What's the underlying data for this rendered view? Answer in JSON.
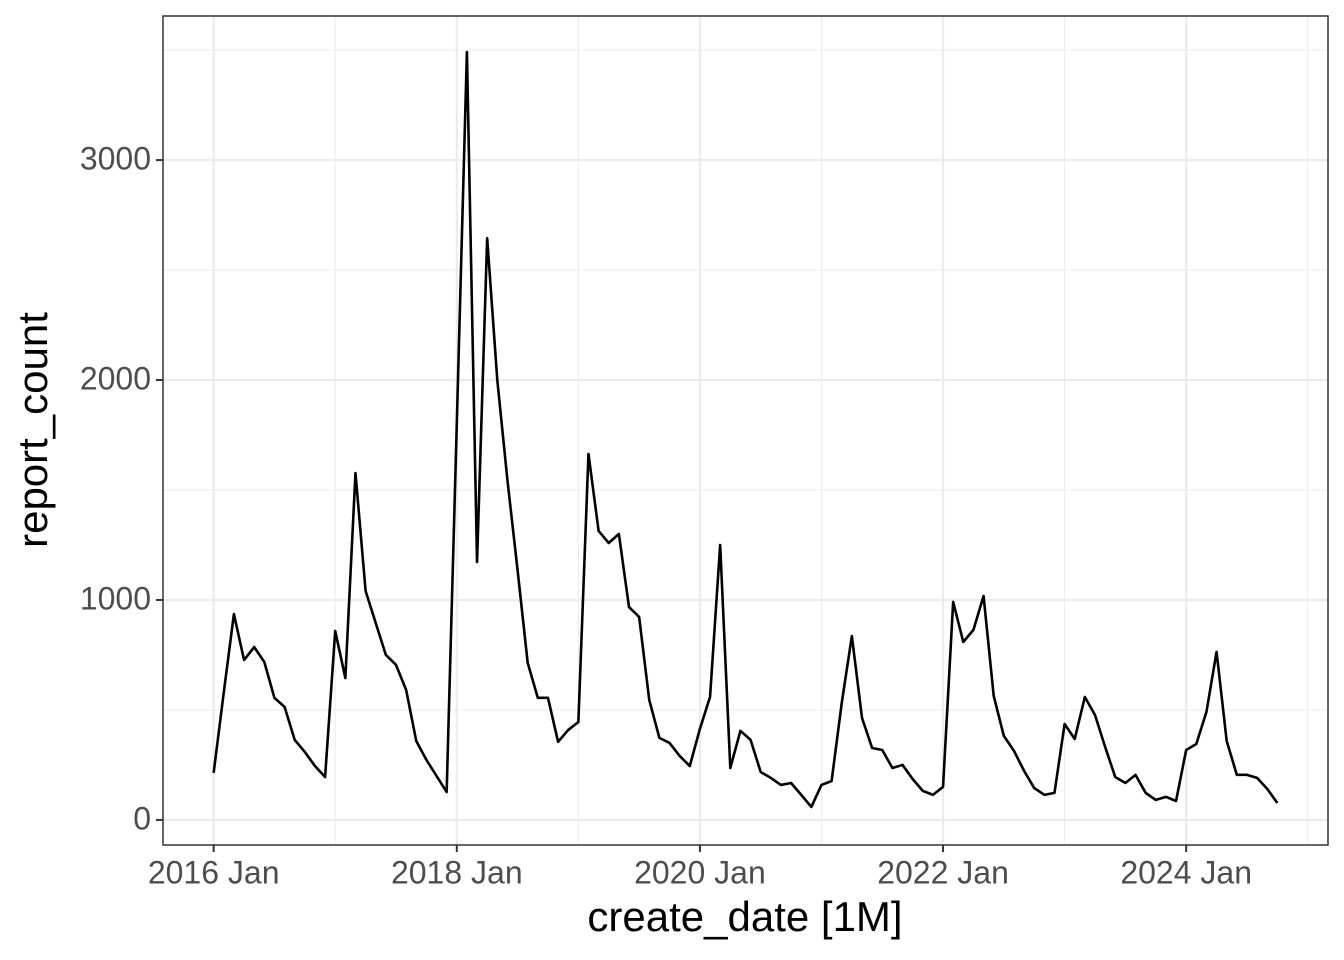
{
  "chart_data": {
    "type": "line",
    "x_label": "create_date [1M]",
    "y_label": "report_count",
    "x": [
      "2016-01",
      "2016-02",
      "2016-03",
      "2016-04",
      "2016-05",
      "2016-06",
      "2016-07",
      "2016-08",
      "2016-09",
      "2016-10",
      "2016-11",
      "2016-12",
      "2017-01",
      "2017-02",
      "2017-03",
      "2017-04",
      "2017-05",
      "2017-06",
      "2017-07",
      "2017-08",
      "2017-09",
      "2017-10",
      "2017-11",
      "2017-12",
      "2018-01",
      "2018-02",
      "2018-03",
      "2018-04",
      "2018-05",
      "2018-06",
      "2018-07",
      "2018-08",
      "2018-09",
      "2018-10",
      "2018-11",
      "2018-12",
      "2019-01",
      "2019-02",
      "2019-03",
      "2019-04",
      "2019-05",
      "2019-06",
      "2019-07",
      "2019-08",
      "2019-09",
      "2019-10",
      "2019-11",
      "2019-12",
      "2020-01",
      "2020-02",
      "2020-03",
      "2020-04",
      "2020-05",
      "2020-06",
      "2020-07",
      "2020-08",
      "2020-09",
      "2020-10",
      "2020-11",
      "2020-12",
      "2021-01",
      "2021-02",
      "2021-03",
      "2021-04",
      "2021-05",
      "2021-06",
      "2021-07",
      "2021-08",
      "2021-09",
      "2021-10",
      "2021-11",
      "2021-12",
      "2022-01",
      "2022-02",
      "2022-03",
      "2022-04",
      "2022-05",
      "2022-06",
      "2022-07",
      "2022-08",
      "2022-09",
      "2022-10",
      "2022-11",
      "2022-12",
      "2023-01",
      "2023-02",
      "2023-03",
      "2023-04",
      "2023-05",
      "2023-06",
      "2023-07",
      "2023-08",
      "2023-09",
      "2023-10",
      "2023-11",
      "2023-12",
      "2024-01",
      "2024-02",
      "2024-03",
      "2024-04",
      "2024-05",
      "2024-06",
      "2024-07",
      "2024-08",
      "2024-09",
      "2024-10"
    ],
    "series": [
      {
        "name": "report_count",
        "color": "#000000",
        "values": [
          214,
          580,
          936,
          727,
          786,
          718,
          555,
          514,
          364,
          309,
          245,
          195,
          859,
          645,
          1577,
          1041,
          895,
          750,
          705,
          591,
          359,
          273,
          200,
          127,
          1800,
          3491,
          1173,
          2645,
          2000,
          1545,
          1136,
          714,
          555,
          555,
          355,
          409,
          445,
          1664,
          1314,
          1259,
          1300,
          968,
          923,
          545,
          373,
          350,
          291,
          245,
          414,
          559,
          1250,
          236,
          405,
          364,
          218,
          191,
          159,
          168,
          114,
          59,
          159,
          177,
          532,
          836,
          464,
          327,
          318,
          236,
          250,
          186,
          132,
          114,
          150,
          991,
          809,
          864,
          1018,
          564,
          382,
          314,
          223,
          145,
          114,
          123,
          436,
          368,
          559,
          477,
          332,
          195,
          168,
          205,
          123,
          91,
          105,
          86,
          318,
          345,
          491,
          764,
          359,
          205,
          205,
          191,
          141,
          77
        ]
      }
    ],
    "xlim": [
      "2015-08",
      "2025-03"
    ],
    "xticks": [
      {
        "value": "2016-01",
        "label": "2016 Jan"
      },
      {
        "value": "2018-01",
        "label": "2018 Jan"
      },
      {
        "value": "2020-01",
        "label": "2020 Jan"
      },
      {
        "value": "2022-01",
        "label": "2022 Jan"
      },
      {
        "value": "2024-01",
        "label": "2024 Jan"
      }
    ],
    "x_minor_ticks": [
      "2017-01",
      "2019-01",
      "2021-01",
      "2023-01",
      "2025-01"
    ],
    "ylim": [
      -114,
      3655
    ],
    "yticks": [
      0,
      1000,
      2000,
      3000
    ],
    "y_minor_ticks": [
      500,
      1500,
      2500,
      3500
    ],
    "grid": true
  }
}
